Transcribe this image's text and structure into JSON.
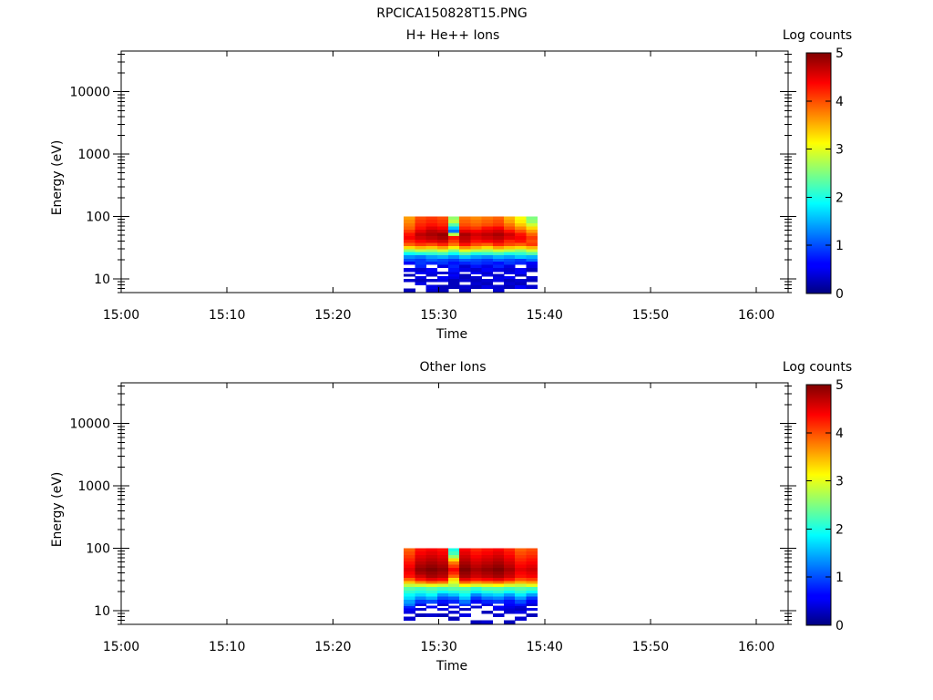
{
  "figure_title": "RPCICA150828T15.PNG",
  "chart_data": [
    {
      "type": "heatmap",
      "title": "H+ He++ Ions",
      "xlabel": "Time",
      "ylabel": "Energy (eV)",
      "x_tick_labels": [
        "15:00",
        "15:10",
        "15:20",
        "15:30",
        "15:40",
        "15:50",
        "16:00"
      ],
      "x_tick_minutes": [
        0,
        10,
        20,
        30,
        40,
        50,
        60
      ],
      "xlim_minutes": [
        0,
        63
      ],
      "y_scale": "log",
      "y_tick_labels": [
        "10",
        "100",
        "1000",
        "10000"
      ],
      "y_tick_values": [
        10,
        100,
        1000,
        10000
      ],
      "ylim": [
        6,
        45000
      ],
      "colorbar": {
        "label": "Log counts",
        "tick_labels": [
          "0",
          "1",
          "2",
          "3",
          "4",
          "5"
        ],
        "range": [
          0,
          5
        ],
        "colormap": "jet"
      },
      "data_time_range_minutes": [
        26.7,
        39.3
      ],
      "time_bins": 12,
      "energy_bins_edges": [
        6,
        7,
        8,
        9,
        10,
        11,
        12,
        13,
        15,
        17,
        19,
        21,
        24,
        27,
        30,
        34,
        38,
        43,
        49,
        55,
        62,
        70,
        79,
        90,
        100
      ],
      "log_counts": [
        [
          0.3,
          null,
          0.4,
          0.3,
          null,
          0.3,
          null,
          null,
          0.4,
          null,
          null,
          null
        ],
        [
          null,
          null,
          0.5,
          0.3,
          0.3,
          0.4,
          0.3,
          0.5,
          0.4,
          0.3,
          0.6,
          0.4
        ],
        [
          null,
          0.5,
          null,
          null,
          0.3,
          null,
          0.4,
          0.3,
          null,
          0.4,
          0.3,
          null
        ],
        [
          0.4,
          0.3,
          0.4,
          0.5,
          0.3,
          0.4,
          0.3,
          0.4,
          0.5,
          0.3,
          0.4,
          0.3
        ],
        [
          null,
          0.5,
          null,
          0.6,
          0.5,
          0.3,
          0.4,
          null,
          0.5,
          0.6,
          null,
          0.4
        ],
        [
          0.3,
          null,
          0.4,
          null,
          0.6,
          0.3,
          null,
          0.5,
          0.4,
          null,
          0.3,
          null
        ],
        [
          null,
          0.6,
          0.5,
          0.4,
          0.5,
          null,
          0.6,
          0.4,
          null,
          0.5,
          0.6,
          null
        ],
        [
          0.5,
          0.4,
          0.6,
          null,
          0.7,
          0.5,
          0.4,
          0.6,
          0.5,
          0.4,
          0.6,
          0.3
        ],
        [
          null,
          0.8,
          null,
          0.5,
          0.8,
          0.4,
          0.7,
          0.5,
          0.8,
          0.5,
          null,
          0.5
        ],
        [
          0.6,
          0.9,
          0.8,
          0.9,
          0.7,
          0.8,
          0.9,
          0.8,
          0.7,
          0.9,
          0.8,
          0.6
        ],
        [
          1.0,
          0.9,
          1.1,
          1.0,
          0.9,
          1.1,
          1.0,
          0.9,
          1.1,
          1.0,
          0.9,
          1.2
        ],
        [
          1.3,
          1.2,
          1.4,
          1.5,
          1.3,
          1.6,
          1.4,
          1.3,
          1.5,
          1.4,
          1.6,
          1.5
        ],
        [
          1.9,
          2.0,
          2.1,
          2.2,
          1.9,
          2.3,
          2.0,
          2.1,
          2.2,
          2.0,
          2.1,
          2.3
        ],
        [
          2.6,
          2.8,
          2.7,
          2.9,
          2.5,
          3.0,
          2.8,
          2.7,
          2.9,
          2.8,
          2.6,
          2.9
        ],
        [
          3.3,
          3.5,
          3.4,
          3.6,
          3.2,
          3.7,
          3.5,
          3.3,
          3.6,
          3.4,
          3.3,
          3.5
        ],
        [
          3.9,
          4.1,
          4.0,
          4.2,
          3.8,
          4.3,
          4.0,
          3.9,
          4.2,
          4.0,
          3.9,
          4.1
        ],
        [
          4.2,
          4.4,
          4.5,
          4.6,
          4.1,
          4.6,
          4.3,
          4.4,
          4.5,
          4.2,
          4.3,
          4.0
        ],
        [
          4.4,
          4.6,
          4.7,
          4.8,
          4.3,
          4.7,
          4.5,
          4.6,
          4.7,
          4.5,
          4.4,
          4.1
        ],
        [
          4.3,
          4.7,
          4.8,
          4.9,
          2.8,
          4.8,
          4.6,
          4.7,
          4.8,
          4.6,
          4.3,
          3.9
        ],
        [
          4.1,
          4.5,
          4.7,
          4.6,
          1.2,
          4.5,
          4.4,
          4.5,
          4.6,
          4.3,
          4.0,
          3.6
        ],
        [
          3.9,
          4.3,
          4.5,
          4.4,
          1.6,
          4.2,
          4.1,
          4.3,
          4.4,
          4.0,
          3.7,
          3.3
        ],
        [
          3.8,
          4.2,
          4.3,
          4.2,
          2.3,
          4.0,
          3.9,
          4.0,
          4.1,
          3.8,
          3.4,
          2.9
        ],
        [
          3.7,
          4.1,
          4.2,
          4.1,
          2.8,
          3.9,
          3.8,
          3.9,
          4.0,
          3.6,
          3.2,
          2.6
        ],
        [
          3.6,
          4.0,
          4.1,
          4.0,
          2.6,
          3.8,
          3.7,
          3.8,
          3.9,
          3.5,
          3.1,
          2.5
        ]
      ]
    },
    {
      "type": "heatmap",
      "title": "Other Ions",
      "xlabel": "Time",
      "ylabel": "Energy (eV)",
      "x_tick_labels": [
        "15:00",
        "15:10",
        "15:20",
        "15:30",
        "15:40",
        "15:50",
        "16:00"
      ],
      "x_tick_minutes": [
        0,
        10,
        20,
        30,
        40,
        50,
        60
      ],
      "xlim_minutes": [
        0,
        63
      ],
      "y_scale": "log",
      "y_tick_labels": [
        "10",
        "100",
        "1000",
        "10000"
      ],
      "y_tick_values": [
        10,
        100,
        1000,
        10000
      ],
      "ylim": [
        6,
        45000
      ],
      "colorbar": {
        "label": "Log counts",
        "tick_labels": [
          "0",
          "1",
          "2",
          "3",
          "4",
          "5"
        ],
        "range": [
          0,
          5
        ],
        "colormap": "jet"
      },
      "data_time_range_minutes": [
        26.7,
        39.3
      ],
      "time_bins": 12,
      "energy_bins_edges": [
        6,
        7,
        8,
        9,
        10,
        11,
        12,
        13,
        15,
        17,
        19,
        21,
        24,
        27,
        30,
        34,
        38,
        43,
        49,
        55,
        62,
        70,
        79,
        90,
        100
      ],
      "log_counts": [
        [
          null,
          null,
          null,
          null,
          null,
          null,
          0.3,
          0.4,
          null,
          0.3,
          null,
          null
        ],
        [
          0.4,
          null,
          null,
          null,
          0.3,
          null,
          null,
          null,
          null,
          null,
          0.4,
          null
        ],
        [
          null,
          0.3,
          0.4,
          0.3,
          null,
          0.5,
          null,
          null,
          0.4,
          null,
          null,
          0.3
        ],
        [
          0.5,
          null,
          null,
          null,
          0.4,
          null,
          null,
          0.3,
          null,
          0.4,
          0.5,
          null
        ],
        [
          0.6,
          0.4,
          null,
          0.5,
          null,
          0.3,
          null,
          null,
          0.5,
          0.4,
          0.3,
          0.5
        ],
        [
          0.8,
          null,
          0.6,
          null,
          0.5,
          null,
          0.4,
          null,
          0.6,
          0.5,
          0.4,
          null
        ],
        [
          1.2,
          0.5,
          null,
          0.4,
          null,
          0.9,
          null,
          0.5,
          null,
          0.6,
          0.7,
          0.4
        ],
        [
          1.4,
          0.9,
          1.0,
          0.7,
          0.8,
          1.2,
          0.6,
          0.8,
          0.9,
          0.7,
          1.0,
          0.6
        ],
        [
          1.7,
          1.3,
          1.5,
          1.0,
          1.1,
          1.6,
          0.9,
          1.2,
          1.3,
          1.0,
          1.4,
          0.9
        ],
        [
          1.9,
          1.7,
          1.9,
          1.4,
          1.6,
          1.9,
          1.3,
          1.6,
          1.7,
          1.4,
          1.8,
          1.4
        ],
        [
          2.1,
          2.0,
          2.1,
          1.9,
          2.0,
          2.1,
          1.8,
          2.0,
          2.1,
          1.9,
          2.1,
          1.9
        ],
        [
          2.3,
          2.2,
          2.3,
          2.2,
          2.3,
          2.3,
          2.1,
          2.3,
          2.3,
          2.2,
          2.3,
          2.2
        ],
        [
          2.8,
          2.9,
          3.0,
          2.9,
          2.7,
          3.1,
          2.9,
          3.0,
          3.1,
          2.9,
          2.8,
          3.0
        ],
        [
          3.4,
          3.7,
          3.9,
          3.8,
          3.0,
          3.9,
          3.7,
          3.8,
          3.9,
          3.7,
          3.5,
          3.6
        ],
        [
          3.9,
          4.3,
          4.5,
          4.4,
          3.3,
          4.5,
          4.3,
          4.4,
          4.5,
          4.3,
          4.0,
          4.1
        ],
        [
          4.3,
          4.6,
          4.8,
          4.7,
          3.9,
          4.8,
          4.6,
          4.7,
          4.8,
          4.6,
          4.3,
          4.4
        ],
        [
          4.4,
          4.8,
          4.9,
          4.8,
          4.2,
          4.9,
          4.7,
          4.8,
          4.9,
          4.7,
          4.4,
          4.5
        ],
        [
          4.5,
          4.9,
          5.0,
          4.9,
          4.4,
          5.0,
          4.8,
          4.9,
          5.0,
          4.8,
          4.5,
          4.6
        ],
        [
          4.4,
          4.8,
          4.9,
          4.8,
          4.1,
          4.9,
          4.7,
          4.8,
          4.9,
          4.7,
          4.4,
          4.5
        ],
        [
          4.3,
          4.7,
          4.8,
          4.7,
          3.8,
          4.8,
          4.6,
          4.7,
          4.8,
          4.6,
          4.3,
          4.4
        ],
        [
          4.2,
          4.6,
          4.7,
          4.6,
          3.3,
          4.7,
          4.5,
          4.6,
          4.7,
          4.5,
          4.2,
          4.3
        ],
        [
          4.1,
          4.5,
          4.6,
          4.5,
          2.6,
          4.6,
          4.4,
          4.5,
          4.6,
          4.4,
          4.1,
          4.2
        ],
        [
          4.0,
          4.4,
          4.5,
          4.4,
          2.2,
          4.5,
          4.3,
          4.4,
          4.5,
          4.3,
          4.0,
          4.1
        ],
        [
          3.9,
          4.3,
          4.4,
          4.3,
          2.0,
          4.4,
          4.2,
          4.3,
          4.4,
          4.2,
          3.9,
          4.0
        ]
      ]
    }
  ]
}
